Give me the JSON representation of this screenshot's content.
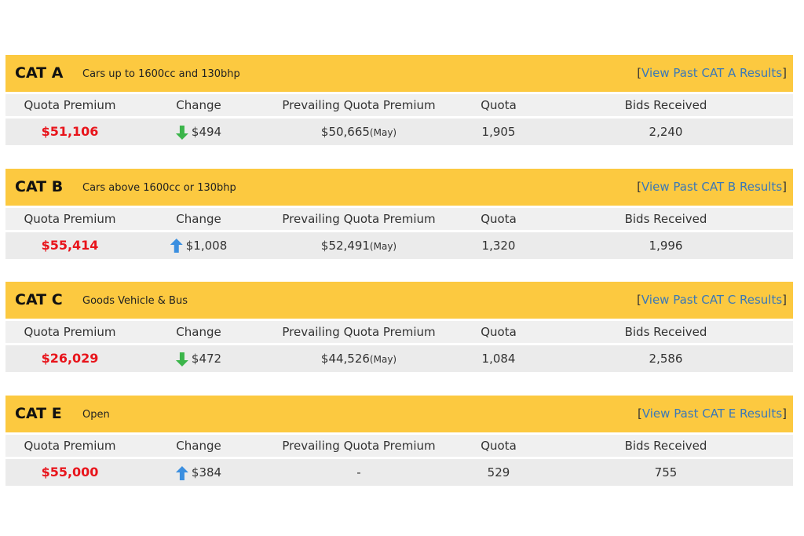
{
  "link_brackets": [
    "[",
    "]"
  ],
  "columns": [
    "Quota Premium",
    "Change",
    "Prevailing Quota Premium",
    "Quota",
    "Bids Received"
  ],
  "panels": [
    {
      "cat": "CAT A",
      "description": "Cars up to 1600cc and 130bhp",
      "link": "View Past CAT A Results",
      "quota_premium": "$51,106",
      "change_direction": "down",
      "change": "$494",
      "prevailing": "$50,665",
      "prevailing_month": "(May)",
      "quota": "1,905",
      "bids": "2,240"
    },
    {
      "cat": "CAT B",
      "description": "Cars above 1600cc or 130bhp",
      "link": "View Past CAT B Results",
      "quota_premium": "$55,414",
      "change_direction": "up",
      "change": "$1,008",
      "prevailing": "$52,491",
      "prevailing_month": "(May)",
      "quota": "1,320",
      "bids": "1,996"
    },
    {
      "cat": "CAT C",
      "description": "Goods Vehicle & Bus",
      "link": "View Past CAT C Results",
      "quota_premium": "$26,029",
      "change_direction": "down",
      "change": "$472",
      "prevailing": "$44,526",
      "prevailing_month": "(May)",
      "quota": "1,084",
      "bids": "2,586"
    },
    {
      "cat": "CAT E",
      "description": "Open",
      "link": "View Past CAT E Results",
      "quota_premium": "$55,000",
      "change_direction": "up",
      "change": "$384",
      "prevailing": "-",
      "prevailing_month": null,
      "quota": "529",
      "bids": "755"
    }
  ]
}
